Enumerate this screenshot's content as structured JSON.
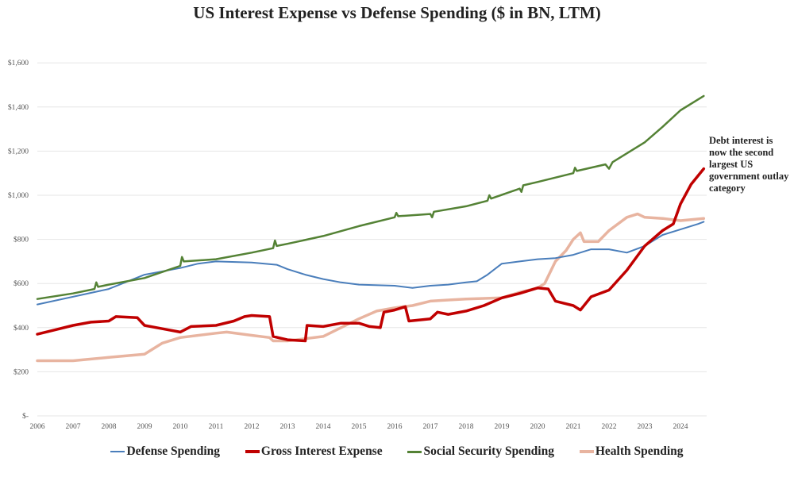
{
  "chart_data": {
    "type": "line",
    "title": "US Interest Expense vs Defense Spending ($ in BN, LTM)",
    "xlabel": "",
    "ylabel": "",
    "xlim": [
      2006,
      2024.65
    ],
    "ylim": [
      0,
      1600
    ],
    "grid": true,
    "legend": "bottom",
    "x_ticks": [
      "2006",
      "2007",
      "2008",
      "2009",
      "2010",
      "2011",
      "2012",
      "2013",
      "2014",
      "2015",
      "2016",
      "2017",
      "2018",
      "2019",
      "2020",
      "2021",
      "2022",
      "2023",
      "2024"
    ],
    "y_ticks": [
      {
        "value": 0,
        "label": "$-"
      },
      {
        "value": 200,
        "label": "$200"
      },
      {
        "value": 400,
        "label": "$400"
      },
      {
        "value": 600,
        "label": "$600"
      },
      {
        "value": 800,
        "label": "$800"
      },
      {
        "value": 1000,
        "label": "$1,000"
      },
      {
        "value": 1200,
        "label": "$1,200"
      },
      {
        "value": 1400,
        "label": "$1,400"
      },
      {
        "value": 1600,
        "label": "$1,600"
      }
    ],
    "annotation": "Debt interest is now the second largest US government outlay category",
    "series": [
      {
        "name": "Defense Spending",
        "color": "#4a7ebb",
        "width": 2,
        "points": [
          [
            2006,
            505
          ],
          [
            2007,
            540
          ],
          [
            2008,
            575
          ],
          [
            2009,
            640
          ],
          [
            2010,
            670
          ],
          [
            2010.5,
            690
          ],
          [
            2011,
            700
          ],
          [
            2012,
            695
          ],
          [
            2012.7,
            685
          ],
          [
            2013,
            665
          ],
          [
            2013.5,
            640
          ],
          [
            2014,
            620
          ],
          [
            2014.5,
            605
          ],
          [
            2015,
            595
          ],
          [
            2016,
            590
          ],
          [
            2016.5,
            580
          ],
          [
            2017,
            590
          ],
          [
            2017.5,
            595
          ],
          [
            2018,
            605
          ],
          [
            2018.3,
            610
          ],
          [
            2018.6,
            640
          ],
          [
            2019,
            690
          ],
          [
            2019.5,
            700
          ],
          [
            2020,
            710
          ],
          [
            2020.5,
            715
          ],
          [
            2021,
            730
          ],
          [
            2021.5,
            755
          ],
          [
            2022,
            755
          ],
          [
            2022.5,
            740
          ],
          [
            2023,
            770
          ],
          [
            2023.5,
            820
          ],
          [
            2024,
            845
          ],
          [
            2024.5,
            870
          ],
          [
            2024.65,
            880
          ]
        ]
      },
      {
        "name": "Gross Interest Expense",
        "color": "#c00000",
        "width": 3.5,
        "points": [
          [
            2006,
            370
          ],
          [
            2006.5,
            390
          ],
          [
            2007,
            410
          ],
          [
            2007.5,
            425
          ],
          [
            2008,
            430
          ],
          [
            2008.2,
            450
          ],
          [
            2008.8,
            445
          ],
          [
            2009,
            410
          ],
          [
            2009.5,
            395
          ],
          [
            2010,
            380
          ],
          [
            2010.3,
            405
          ],
          [
            2011,
            410
          ],
          [
            2011.5,
            430
          ],
          [
            2011.8,
            450
          ],
          [
            2012,
            455
          ],
          [
            2012.5,
            450
          ],
          [
            2012.6,
            360
          ],
          [
            2013,
            345
          ],
          [
            2013.5,
            340
          ],
          [
            2013.55,
            410
          ],
          [
            2014,
            405
          ],
          [
            2014.5,
            420
          ],
          [
            2015,
            420
          ],
          [
            2015.3,
            405
          ],
          [
            2015.6,
            400
          ],
          [
            2015.7,
            470
          ],
          [
            2016,
            480
          ],
          [
            2016.3,
            495
          ],
          [
            2016.4,
            430
          ],
          [
            2017,
            440
          ],
          [
            2017.2,
            470
          ],
          [
            2017.5,
            460
          ],
          [
            2018,
            475
          ],
          [
            2018.5,
            500
          ],
          [
            2019,
            535
          ],
          [
            2019.5,
            555
          ],
          [
            2020,
            580
          ],
          [
            2020.3,
            575
          ],
          [
            2020.5,
            520
          ],
          [
            2021,
            500
          ],
          [
            2021.2,
            480
          ],
          [
            2021.5,
            540
          ],
          [
            2022,
            570
          ],
          [
            2022.5,
            660
          ],
          [
            2023,
            770
          ],
          [
            2023.5,
            840
          ],
          [
            2023.8,
            870
          ],
          [
            2024,
            960
          ],
          [
            2024.3,
            1050
          ],
          [
            2024.65,
            1120
          ]
        ]
      },
      {
        "name": "Social Security Spending",
        "color": "#548235",
        "width": 2.5,
        "points": [
          [
            2006,
            530
          ],
          [
            2007,
            555
          ],
          [
            2007.6,
            575
          ],
          [
            2007.65,
            605
          ],
          [
            2007.7,
            585
          ],
          [
            2008,
            595
          ],
          [
            2009,
            625
          ],
          [
            2010,
            680
          ],
          [
            2010.05,
            720
          ],
          [
            2010.1,
            700
          ],
          [
            2011,
            710
          ],
          [
            2012,
            740
          ],
          [
            2012.6,
            760
          ],
          [
            2012.65,
            795
          ],
          [
            2012.7,
            770
          ],
          [
            2013,
            780
          ],
          [
            2014,
            815
          ],
          [
            2015,
            860
          ],
          [
            2016,
            900
          ],
          [
            2016.05,
            920
          ],
          [
            2016.1,
            905
          ],
          [
            2017,
            915
          ],
          [
            2017.05,
            900
          ],
          [
            2017.1,
            925
          ],
          [
            2018,
            950
          ],
          [
            2018.6,
            975
          ],
          [
            2018.65,
            1000
          ],
          [
            2018.7,
            985
          ],
          [
            2019.5,
            1030
          ],
          [
            2019.55,
            1015
          ],
          [
            2019.6,
            1045
          ],
          [
            2020,
            1060
          ],
          [
            2021,
            1100
          ],
          [
            2021.05,
            1125
          ],
          [
            2021.1,
            1110
          ],
          [
            2021.9,
            1140
          ],
          [
            2022,
            1120
          ],
          [
            2022.1,
            1150
          ],
          [
            2023,
            1240
          ],
          [
            2023.5,
            1310
          ],
          [
            2024,
            1385
          ],
          [
            2024.65,
            1450
          ]
        ]
      },
      {
        "name": "Health Spending",
        "color": "#e8b4a0",
        "width": 3.5,
        "points": [
          [
            2006,
            250
          ],
          [
            2007,
            250
          ],
          [
            2008,
            265
          ],
          [
            2009,
            280
          ],
          [
            2009.5,
            330
          ],
          [
            2010,
            355
          ],
          [
            2011,
            375
          ],
          [
            2011.3,
            380
          ],
          [
            2012,
            365
          ],
          [
            2012.5,
            355
          ],
          [
            2012.6,
            340
          ],
          [
            2013,
            340
          ],
          [
            2013.5,
            350
          ],
          [
            2014,
            360
          ],
          [
            2014.5,
            400
          ],
          [
            2015,
            440
          ],
          [
            2015.5,
            475
          ],
          [
            2016,
            490
          ],
          [
            2016.5,
            500
          ],
          [
            2017,
            520
          ],
          [
            2017.5,
            525
          ],
          [
            2018,
            530
          ],
          [
            2019,
            535
          ],
          [
            2019.5,
            560
          ],
          [
            2020,
            580
          ],
          [
            2020.2,
            600
          ],
          [
            2020.5,
            700
          ],
          [
            2020.8,
            750
          ],
          [
            2021,
            800
          ],
          [
            2021.2,
            830
          ],
          [
            2021.3,
            790
          ],
          [
            2021.7,
            790
          ],
          [
            2022,
            840
          ],
          [
            2022.5,
            900
          ],
          [
            2022.8,
            915
          ],
          [
            2023,
            900
          ],
          [
            2023.5,
            895
          ],
          [
            2024,
            885
          ],
          [
            2024.65,
            895
          ]
        ]
      }
    ]
  }
}
